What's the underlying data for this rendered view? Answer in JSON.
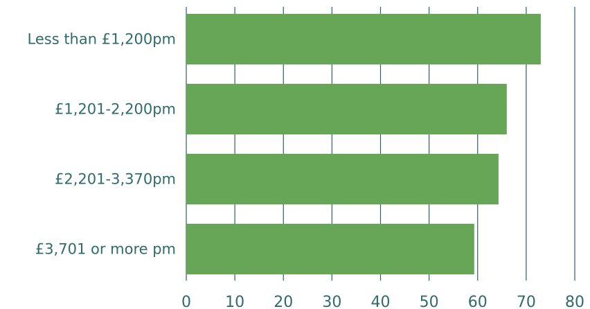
{
  "chart_data": {
    "type": "bar",
    "orientation": "horizontal",
    "categories": [
      "Less than £1,200pm",
      "£1,201-2,200pm",
      "£2,201-3,370pm",
      "£3,701 or more pm"
    ],
    "values": [
      73,
      66,
      64.3,
      59.3
    ],
    "xlim": [
      0,
      80
    ],
    "xticks": [
      "0",
      "10",
      "20",
      "30",
      "40",
      "50",
      "60",
      "70",
      "80"
    ],
    "title": "",
    "xlabel": "",
    "ylabel": "",
    "grid": "vertical",
    "bar_color": "#67a657",
    "text_color": "#2f6b6b",
    "grid_color": "#2f5f66"
  }
}
